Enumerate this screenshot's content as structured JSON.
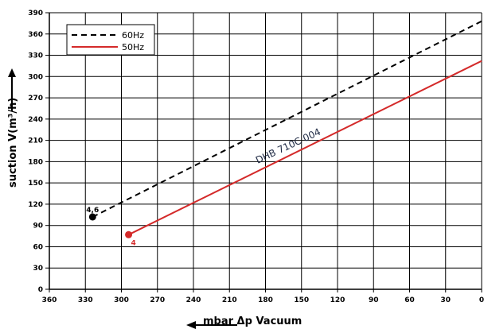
{
  "chart_data": {
    "type": "line",
    "xlabel": "mbar Δp Vacuum",
    "ylabel": "suction V(m³/h)",
    "xlim": [
      360,
      0
    ],
    "ylim": [
      0,
      390
    ],
    "x_ticks": [
      360,
      330,
      300,
      270,
      240,
      210,
      180,
      150,
      120,
      90,
      60,
      30,
      0
    ],
    "y_ticks": [
      0,
      30,
      60,
      90,
      120,
      150,
      180,
      210,
      240,
      270,
      300,
      330,
      360,
      390
    ],
    "x_tick_labels": [
      "360",
      "330",
      "300",
      "270",
      "240",
      "210",
      "180",
      "150",
      "120",
      "90",
      "60",
      "30",
      "0"
    ],
    "y_tick_labels": [
      "0",
      "30",
      "60",
      "90",
      "120",
      "150",
      "180",
      "210",
      "240",
      "270",
      "300",
      "330",
      "360",
      "390"
    ],
    "grid": true,
    "legend_position": "top-left",
    "series": [
      {
        "name": "60Hz",
        "color": "#000000",
        "style": "dashed",
        "x": [
          324,
          0
        ],
        "y": [
          102,
          378
        ]
      },
      {
        "name": "50Hz",
        "color": "#d42a2a",
        "style": "solid",
        "x": [
          294,
          0
        ],
        "y": [
          77,
          322
        ]
      }
    ],
    "annotations": [
      {
        "text": "DHB 710C 004",
        "x": 160,
        "y": 198,
        "angle": -25
      }
    ],
    "markers": [
      {
        "label": "4,6",
        "x": 324,
        "y": 102,
        "color": "#000000"
      },
      {
        "label": "4",
        "x": 294,
        "y": 77,
        "color": "#d42a2a"
      }
    ]
  }
}
